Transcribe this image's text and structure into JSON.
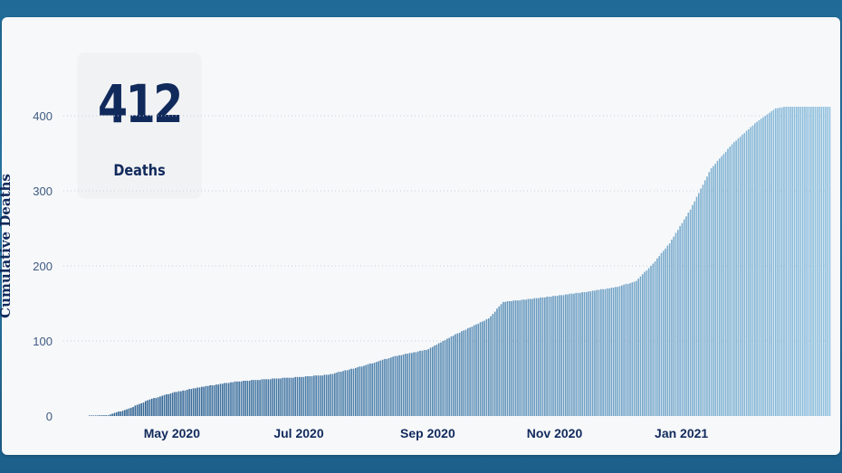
{
  "kpi": {
    "value": "412",
    "label": "Deaths"
  },
  "colors": {
    "bar_dark": "#2b5e8e",
    "bar_light": "#8fc0de",
    "axis_text": "#112a5c"
  },
  "chart_data": {
    "type": "bar",
    "xlabel": "",
    "ylabel": "Cumulative Deaths",
    "ylim": [
      0,
      430
    ],
    "yticks": [
      0,
      100,
      200,
      300,
      400
    ],
    "xticks": [
      "May 2020",
      "Jul 2020",
      "Sep 2020",
      "Nov 2020",
      "Jan 2021"
    ],
    "x_start": "2020-03-22",
    "x_end": "2021-03-13",
    "grid": "horizontal dotted",
    "series": [
      {
        "knots": [
          {
            "date": "2020-03-22",
            "value": 0
          },
          {
            "date": "2020-03-31",
            "value": 1
          },
          {
            "date": "2020-04-10",
            "value": 10
          },
          {
            "date": "2020-04-20",
            "value": 22
          },
          {
            "date": "2020-05-01",
            "value": 31
          },
          {
            "date": "2020-05-15",
            "value": 39
          },
          {
            "date": "2020-06-01",
            "value": 46
          },
          {
            "date": "2020-06-15",
            "value": 49
          },
          {
            "date": "2020-07-01",
            "value": 52
          },
          {
            "date": "2020-07-15",
            "value": 55
          },
          {
            "date": "2020-08-01",
            "value": 67
          },
          {
            "date": "2020-08-15",
            "value": 79
          },
          {
            "date": "2020-09-01",
            "value": 89
          },
          {
            "date": "2020-09-15",
            "value": 110
          },
          {
            "date": "2020-09-30",
            "value": 130
          },
          {
            "date": "2020-10-07",
            "value": 152
          },
          {
            "date": "2020-10-20",
            "value": 156
          },
          {
            "date": "2020-11-01",
            "value": 160
          },
          {
            "date": "2020-11-15",
            "value": 165
          },
          {
            "date": "2020-12-01",
            "value": 172
          },
          {
            "date": "2020-12-10",
            "value": 180
          },
          {
            "date": "2020-12-18",
            "value": 203
          },
          {
            "date": "2020-12-26",
            "value": 230
          },
          {
            "date": "2021-01-05",
            "value": 275
          },
          {
            "date": "2021-01-15",
            "value": 330
          },
          {
            "date": "2021-01-25",
            "value": 362
          },
          {
            "date": "2021-02-05",
            "value": 390
          },
          {
            "date": "2021-02-15",
            "value": 410
          },
          {
            "date": "2021-02-20",
            "value": 412
          },
          {
            "date": "2021-03-13",
            "value": 412
          }
        ]
      }
    ]
  }
}
